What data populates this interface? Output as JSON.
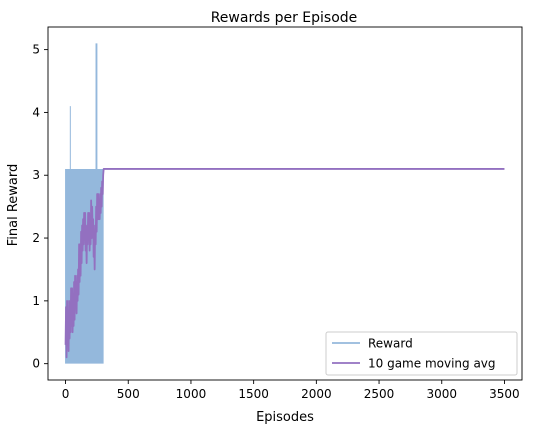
{
  "chart_data": {
    "type": "line",
    "title": "Rewards per Episode",
    "xlabel": "Episodes",
    "ylabel": "Final Reward",
    "xlim": [
      -140,
      3640
    ],
    "ylim": [
      -0.26,
      5.36
    ],
    "xticks": [
      0,
      500,
      1000,
      1500,
      2000,
      2500,
      3000,
      3500
    ],
    "yticks": [
      0,
      1,
      2,
      3,
      4,
      5
    ],
    "grid": false,
    "legend_position": "lower-right",
    "series": [
      {
        "name": "Reward",
        "color": "#94b8dc",
        "style": "dense-oscillation",
        "oscillation_end": 300,
        "low_value": 0,
        "high_value": 3.1,
        "spikes": [
          [
            20,
            2.1
          ],
          [
            38,
            4.1
          ],
          [
            45,
            3.1
          ],
          [
            120,
            3.1
          ],
          [
            220,
            3.1
          ],
          [
            243,
            5.1
          ],
          [
            250,
            5.1
          ]
        ],
        "points": [
          [
            300,
            3.1
          ],
          [
            3500,
            3.1
          ]
        ]
      },
      {
        "name": "10 game moving avg",
        "color": "#9370c0",
        "points": [
          [
            0,
            0.3
          ],
          [
            4,
            0.9
          ],
          [
            8,
            0.1
          ],
          [
            12,
            1.0
          ],
          [
            16,
            0.3
          ],
          [
            20,
            0.6
          ],
          [
            24,
            0.2
          ],
          [
            28,
            1.0
          ],
          [
            32,
            0.4
          ],
          [
            36,
            0.9
          ],
          [
            40,
            0.5
          ],
          [
            44,
            1.2
          ],
          [
            48,
            0.6
          ],
          [
            52,
            1.2
          ],
          [
            56,
            0.5
          ],
          [
            60,
            1.0
          ],
          [
            64,
            0.6
          ],
          [
            68,
            1.3
          ],
          [
            72,
            0.7
          ],
          [
            76,
            1.4
          ],
          [
            80,
            0.9
          ],
          [
            84,
            1.3
          ],
          [
            88,
            0.8
          ],
          [
            92,
            1.4
          ],
          [
            96,
            1.0
          ],
          [
            100,
            1.5
          ],
          [
            104,
            1.1
          ],
          [
            108,
            1.9
          ],
          [
            112,
            1.3
          ],
          [
            116,
            1.9
          ],
          [
            120,
            1.4
          ],
          [
            124,
            2.1
          ],
          [
            128,
            1.6
          ],
          [
            132,
            2.2
          ],
          [
            136,
            1.8
          ],
          [
            140,
            2.3
          ],
          [
            144,
            1.9
          ],
          [
            148,
            2.4
          ],
          [
            152,
            2.0
          ],
          [
            156,
            2.4
          ],
          [
            160,
            1.8
          ],
          [
            164,
            2.1
          ],
          [
            168,
            1.6
          ],
          [
            172,
            2.2
          ],
          [
            176,
            1.9
          ],
          [
            180,
            2.4
          ],
          [
            184,
            2.0
          ],
          [
            188,
            2.4
          ],
          [
            192,
            1.8
          ],
          [
            196,
            2.3
          ],
          [
            200,
            1.9
          ],
          [
            204,
            2.6
          ],
          [
            208,
            2.0
          ],
          [
            212,
            2.5
          ],
          [
            216,
            2.1
          ],
          [
            220,
            2.3
          ],
          [
            224,
            1.7
          ],
          [
            228,
            2.0
          ],
          [
            232,
            1.5
          ],
          [
            236,
            2.2
          ],
          [
            240,
            1.9
          ],
          [
            244,
            2.5
          ],
          [
            248,
            2.1
          ],
          [
            252,
            2.7
          ],
          [
            256,
            2.3
          ],
          [
            260,
            2.7
          ],
          [
            264,
            2.3
          ],
          [
            268,
            2.6
          ],
          [
            272,
            2.3
          ],
          [
            276,
            2.7
          ],
          [
            280,
            2.4
          ],
          [
            284,
            2.8
          ],
          [
            288,
            2.5
          ],
          [
            292,
            2.9
          ],
          [
            296,
            2.7
          ],
          [
            300,
            3.0
          ],
          [
            304,
            3.1
          ],
          [
            3500,
            3.1
          ]
        ]
      }
    ]
  }
}
